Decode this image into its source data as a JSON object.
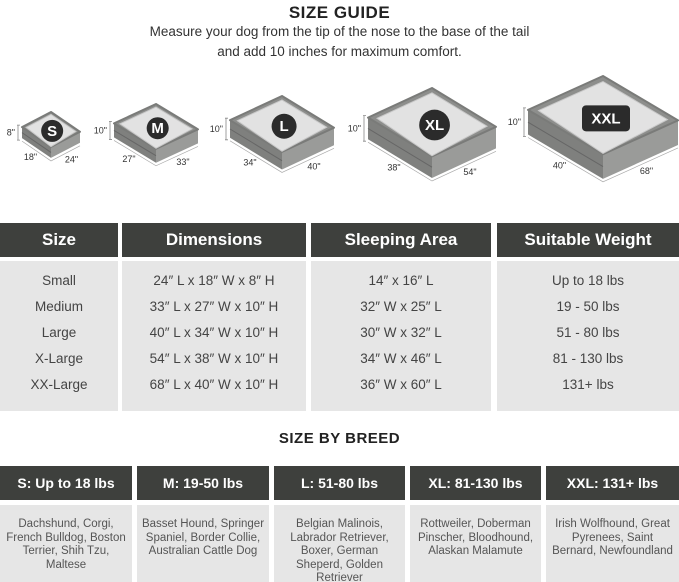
{
  "title": "SIZE GUIDE",
  "subtitle_line1": "Measure your dog from the tip of the nose to the base of the tail",
  "subtitle_line2": "and add 10 inches for maximum comfort.",
  "beds": [
    {
      "badge": "S",
      "height": "8\"",
      "depth": "18\"",
      "width": "24\""
    },
    {
      "badge": "M",
      "height": "10\"",
      "depth": "27\"",
      "width": "33\""
    },
    {
      "badge": "L",
      "height": "10\"",
      "depth": "34\"",
      "width": "40\""
    },
    {
      "badge": "XL",
      "height": "10\"",
      "depth": "38\"",
      "width": "54\""
    },
    {
      "badge": "XXL",
      "height": "10\"",
      "depth": "40\"",
      "width": "68\""
    }
  ],
  "size_table": {
    "headers": [
      "Size",
      "Dimensions",
      "Sleeping Area",
      "Suitable Weight"
    ],
    "columns": [
      [
        "Small",
        "Medium",
        "Large",
        "X-Large",
        "XX-Large"
      ],
      [
        "24″ L x 18″ W x 8″ H",
        "33″ L x 27″ W x 10″ H",
        "40″ L x 34″ W x 10″ H",
        "54″ L x 38″ W x 10″ H",
        "68″ L x 40″ W x 10″ H"
      ],
      [
        "14″ x 16″ L",
        "32″ W x 25″ L",
        "30″ W x 32″ L",
        "34″ W x 46″ L",
        "36″ W x 60″ L"
      ],
      [
        "Up to 18 lbs",
        "19 - 50 lbs",
        "51 - 80 lbs",
        "81 - 130 lbs",
        "131+ lbs"
      ]
    ]
  },
  "breed_title": "SIZE BY BREED",
  "breed_table": [
    {
      "header": "S: Up to 18 lbs",
      "breeds": "Dachshund, Corgi, French Bulldog, Boston Terrier, Shih Tzu, Maltese"
    },
    {
      "header": "M: 19-50 lbs",
      "breeds": "Basset Hound, Springer Spaniel, Border Collie, Australian Cattle Dog"
    },
    {
      "header": "L: 51-80 lbs",
      "breeds": "Belgian Malinois, Labrador Retriever, Boxer, German Sheperd, Golden Retriever"
    },
    {
      "header": "XL: 81-130 lbs",
      "breeds": "Rottweiler, Doberman Pinscher, Bloodhound, Alaskan Malamute"
    },
    {
      "header": "XXL: 131+ lbs",
      "breeds": "Irish Wolfhound, Great Pyrenees, Saint Bernard, Newfoundland"
    }
  ],
  "colors": {
    "header_bg": "#3e403d",
    "cell_bg": "#e6e6e6",
    "bed_frame": "#8a8a8a",
    "bed_surface": "#e2e2e2",
    "badge": "#2b2b2b"
  }
}
